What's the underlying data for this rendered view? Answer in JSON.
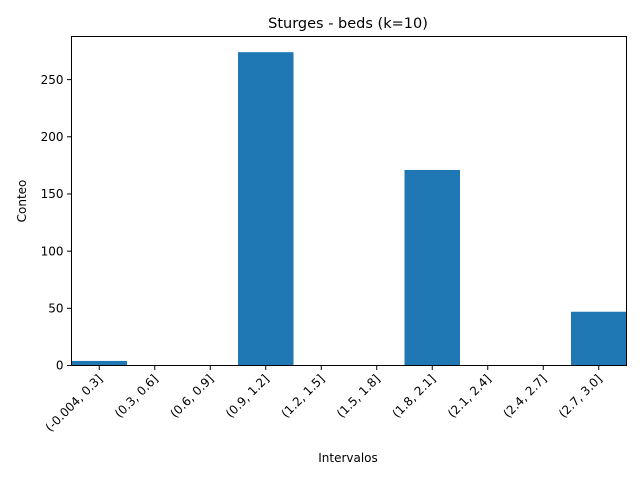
{
  "chart_data": {
    "type": "bar",
    "title": "Sturges - beds (k=10)",
    "xlabel": "Intervalos",
    "ylabel": "Conteo",
    "categories": [
      "(-0.004, 0.3]",
      "(0.3, 0.6]",
      "(0.6, 0.9]",
      "(0.9, 1.2]",
      "(1.2, 1.5]",
      "(1.5, 1.8]",
      "(1.8, 2.1]",
      "(2.1, 2.4]",
      "(2.4, 2.7]",
      "(2.7, 3.0]"
    ],
    "values": [
      4,
      0,
      0,
      274,
      0,
      0,
      171,
      0,
      0,
      47
    ],
    "ylim": [
      0,
      287.7
    ],
    "yticks": [
      0,
      50,
      100,
      150,
      200,
      250
    ],
    "bar_color": "#1f77b4",
    "grid": false,
    "legend": "none"
  }
}
